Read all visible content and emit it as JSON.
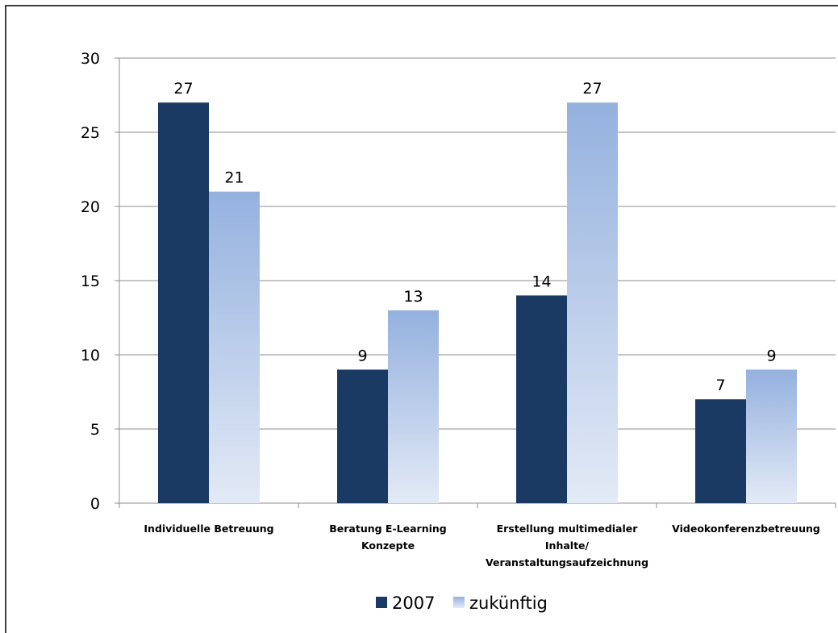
{
  "chart_data": {
    "type": "bar",
    "categories": [
      [
        "Individuelle Betreuung"
      ],
      [
        "Beratung E-Learning",
        "Konzepte"
      ],
      [
        "Erstellung multimedialer",
        "Inhalte/",
        "Veranstaltungsaufzeichnung"
      ],
      [
        "Videokonferenzbetreuung"
      ]
    ],
    "series": [
      {
        "name": "2007",
        "values": [
          27,
          9,
          14,
          7
        ],
        "color": "#1b3a63"
      },
      {
        "name": "zukünftig",
        "values": [
          21,
          13,
          27,
          9
        ],
        "color_top": "#94b1de",
        "color_bottom": "#e3eaf6"
      }
    ],
    "ylim": [
      0,
      30
    ],
    "yticks": [
      0,
      5,
      10,
      15,
      20,
      25,
      30
    ],
    "grid": true,
    "legend_position": "bottom-center",
    "data_labels": true
  }
}
